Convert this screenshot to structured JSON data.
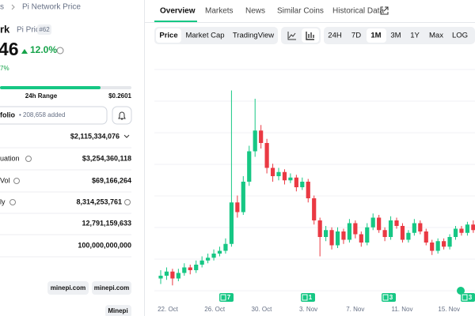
{
  "breadcrumb": {
    "parent": "s",
    "current": "Pi Network Price"
  },
  "coin": {
    "name": "rk",
    "symbol_label": "Pi Price",
    "rank": "#62",
    "price": "46",
    "change": "12.0%",
    "sub_change": "7%",
    "range_label": "24h Range",
    "range_high": "$0.2601"
  },
  "portfolio": {
    "label": "folio",
    "added": "• 208,658 added"
  },
  "stats": [
    {
      "label": "",
      "value": "$2,115,334,076"
    },
    {
      "label": "uation",
      "value": "$3,254,360,118"
    },
    {
      "label": "Vol",
      "value": "$69,166,264"
    },
    {
      "label": "ly",
      "value": "8,314,253,761"
    },
    {
      "label": "",
      "value": "12,791,159,633"
    },
    {
      "label": "",
      "value": "100,000,000,000"
    }
  ],
  "links": [
    "minepi.com",
    "minepi.com"
  ],
  "link2": "Minepi",
  "tabs": [
    "Overview",
    "Markets",
    "News",
    "Similar Coins",
    "Historical Data"
  ],
  "toolbar": {
    "views": [
      "Price",
      "Market Cap",
      "TradingView"
    ],
    "periods": [
      "24H",
      "7D",
      "1M",
      "3M",
      "1Y",
      "Max",
      "LOG"
    ]
  },
  "price_chart": {
    "type": "candlestick",
    "up_color": "#16c784",
    "down_color": "#ea3943",
    "ylim": [
      0.16,
      0.32
    ],
    "x_labels": [
      "22. Oct",
      "26. Oct",
      "30. Oct",
      "3. Nov",
      "7. Nov",
      "11. Nov",
      "15. Nov"
    ],
    "events": [
      7,
      1,
      3,
      3
    ],
    "candles": [
      [
        0.17,
        0.176,
        0.166,
        0.172
      ],
      [
        0.172,
        0.178,
        0.169,
        0.175
      ],
      [
        0.175,
        0.177,
        0.165,
        0.17
      ],
      [
        0.17,
        0.177,
        0.168,
        0.174
      ],
      [
        0.174,
        0.181,
        0.172,
        0.178
      ],
      [
        0.178,
        0.18,
        0.173,
        0.176
      ],
      [
        0.176,
        0.183,
        0.174,
        0.18
      ],
      [
        0.18,
        0.186,
        0.178,
        0.183
      ],
      [
        0.183,
        0.188,
        0.181,
        0.185
      ],
      [
        0.185,
        0.191,
        0.183,
        0.188
      ],
      [
        0.188,
        0.193,
        0.186,
        0.19
      ],
      [
        0.19,
        0.199,
        0.188,
        0.195
      ],
      [
        0.195,
        0.306,
        0.193,
        0.225
      ],
      [
        0.225,
        0.23,
        0.214,
        0.218
      ],
      [
        0.218,
        0.244,
        0.216,
        0.24
      ],
      [
        0.24,
        0.266,
        0.237,
        0.262
      ],
      [
        0.262,
        0.3,
        0.258,
        0.277
      ],
      [
        0.277,
        0.281,
        0.264,
        0.268
      ],
      [
        0.268,
        0.271,
        0.246,
        0.25
      ],
      [
        0.25,
        0.253,
        0.24,
        0.244
      ],
      [
        0.244,
        0.25,
        0.241,
        0.247
      ],
      [
        0.247,
        0.249,
        0.238,
        0.241
      ],
      [
        0.241,
        0.246,
        0.239,
        0.243
      ],
      [
        0.243,
        0.245,
        0.233,
        0.236
      ],
      [
        0.236,
        0.243,
        0.234,
        0.24
      ],
      [
        0.24,
        0.242,
        0.225,
        0.228
      ],
      [
        0.228,
        0.23,
        0.209,
        0.212
      ],
      [
        0.212,
        0.214,
        0.186,
        0.2
      ],
      [
        0.2,
        0.208,
        0.197,
        0.205
      ],
      [
        0.205,
        0.207,
        0.191,
        0.194
      ],
      [
        0.194,
        0.207,
        0.192,
        0.204
      ],
      [
        0.204,
        0.206,
        0.195,
        0.198
      ],
      [
        0.198,
        0.213,
        0.196,
        0.21
      ],
      [
        0.21,
        0.212,
        0.199,
        0.202
      ],
      [
        0.202,
        0.204,
        0.193,
        0.196
      ],
      [
        0.196,
        0.21,
        0.194,
        0.207
      ],
      [
        0.207,
        0.217,
        0.205,
        0.214
      ],
      [
        0.214,
        0.216,
        0.203,
        0.205
      ],
      [
        0.205,
        0.207,
        0.197,
        0.2
      ],
      [
        0.2,
        0.215,
        0.198,
        0.212
      ],
      [
        0.212,
        0.214,
        0.206,
        0.208
      ],
      [
        0.208,
        0.21,
        0.196,
        0.198
      ],
      [
        0.198,
        0.205,
        0.196,
        0.203
      ],
      [
        0.203,
        0.213,
        0.201,
        0.21
      ],
      [
        0.21,
        0.212,
        0.202,
        0.204
      ],
      [
        0.204,
        0.206,
        0.194,
        0.196
      ],
      [
        0.196,
        0.198,
        0.187,
        0.19
      ],
      [
        0.19,
        0.199,
        0.188,
        0.197
      ],
      [
        0.197,
        0.199,
        0.191,
        0.193
      ],
      [
        0.193,
        0.202,
        0.191,
        0.2
      ],
      [
        0.2,
        0.208,
        0.198,
        0.206
      ],
      [
        0.206,
        0.208,
        0.201,
        0.203
      ],
      [
        0.203,
        0.211,
        0.201,
        0.209
      ],
      [
        0.209,
        0.212,
        0.203,
        0.205
      ]
    ]
  }
}
